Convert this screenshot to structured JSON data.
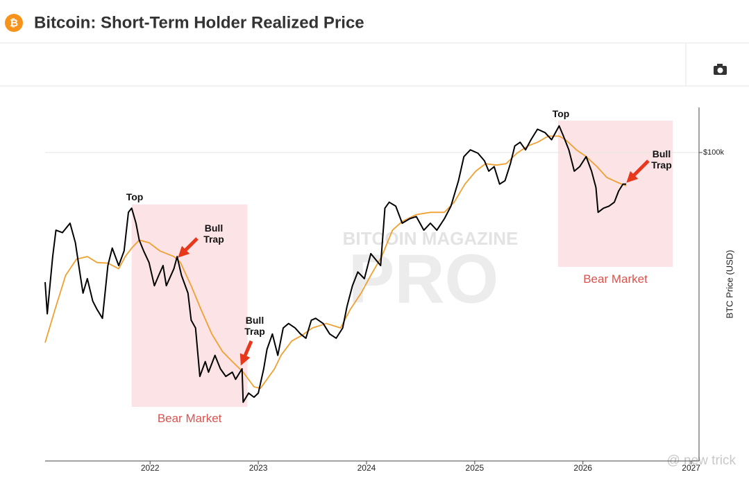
{
  "header": {
    "title": "Bitcoin: Short-Term Holder Realized Price"
  },
  "watermark": {
    "brand": "BITCOIN MAGAZINE",
    "product": "PRO",
    "credit": "@ new trick"
  },
  "chart_data": {
    "type": "line",
    "y_label": "BTC Price (USD)",
    "xlim": [
      2021.03,
      2027.06
    ],
    "xticks": [
      2022,
      2023,
      2024,
      2025,
      2026,
      2027
    ],
    "ylim": [
      10000,
      140000
    ],
    "yticks": [
      {
        "value": 100000,
        "label": "$100k"
      }
    ],
    "y_scale": "log",
    "shade_color": "#fbe3e6",
    "shaded_regions": [
      {
        "label": "Bear Market",
        "x": [
          2021.83,
          2022.9
        ]
      },
      {
        "label": "Bear Market",
        "x": [
          2025.77,
          2026.83
        ]
      }
    ],
    "annotations": [
      "Top",
      "Bull Trap",
      "Bull Trap",
      "Top",
      "Bull Trap"
    ],
    "arrow_color": "#e8381c",
    "series": [
      {
        "color": "#000000",
        "x": [
          2021.03,
          2021.05,
          2021.1,
          2021.13,
          2021.19,
          2021.26,
          2021.31,
          2021.35,
          2021.38,
          2021.42,
          2021.47,
          2021.51,
          2021.56,
          2021.61,
          2021.65,
          2021.71,
          2021.76,
          2021.8,
          2021.83,
          2021.87,
          2021.9,
          2021.94,
          2021.99,
          2022.04,
          2022.08,
          2022.12,
          2022.15,
          2022.22,
          2022.25,
          2022.29,
          2022.35,
          2022.38,
          2022.42,
          2022.46,
          2022.51,
          2022.54,
          2022.6,
          2022.65,
          2022.7,
          2022.76,
          2022.79,
          2022.85,
          2022.86,
          2022.91,
          2022.96,
          2023.0,
          2023.05,
          2023.08,
          2023.13,
          2023.18,
          2023.23,
          2023.28,
          2023.34,
          2023.39,
          2023.44,
          2023.49,
          2023.53,
          2023.6,
          2023.66,
          2023.72,
          2023.78,
          2023.82,
          2023.87,
          2023.92,
          2023.98,
          2024.04,
          2024.13,
          2024.17,
          2024.21,
          2024.27,
          2024.33,
          2024.4,
          2024.46,
          2024.53,
          2024.59,
          2024.65,
          2024.72,
          2024.78,
          2024.85,
          2024.9,
          2024.96,
          2025.03,
          2025.09,
          2025.13,
          2025.18,
          2025.23,
          2025.28,
          2025.33,
          2025.37,
          2025.42,
          2025.47,
          2025.52,
          2025.58,
          2025.65,
          2025.71,
          2025.78,
          2025.82,
          2025.87,
          2025.92,
          2025.97,
          2026.03,
          2026.08,
          2026.12,
          2026.14,
          2026.19,
          2026.24,
          2026.29,
          2026.33,
          2026.37,
          2026.4
        ],
        "values": [
          38000,
          30000,
          46000,
          56000,
          55000,
          59000,
          51000,
          41000,
          35000,
          39000,
          33000,
          31000,
          29000,
          43000,
          49000,
          43000,
          48000,
          64000,
          66000,
          59000,
          52000,
          48000,
          44000,
          37000,
          40000,
          43000,
          37000,
          42000,
          46000,
          40000,
          35000,
          28600,
          27000,
          18800,
          21000,
          19400,
          22000,
          19900,
          18800,
          19400,
          18400,
          19900,
          15500,
          16600,
          16100,
          16600,
          19900,
          23000,
          25800,
          22000,
          27000,
          27900,
          27000,
          25800,
          25000,
          28600,
          29000,
          27900,
          25800,
          25000,
          27000,
          31700,
          37000,
          41000,
          39000,
          47000,
          43000,
          66000,
          69000,
          67000,
          59000,
          61000,
          62000,
          56000,
          59000,
          56000,
          61000,
          67000,
          81000,
          97000,
          102000,
          99500,
          94000,
          87000,
          90000,
          79000,
          81000,
          92000,
          105000,
          108000,
          102000,
          110000,
          119000,
          116000,
          110000,
          122000,
          113000,
          102000,
          87000,
          90000,
          97000,
          87000,
          77000,
          64000,
          66000,
          67000,
          69000,
          75000,
          79000,
          79000
        ]
      },
      {
        "color": "#f0a030",
        "x": [
          2021.03,
          2021.13,
          2021.22,
          2021.32,
          2021.42,
          2021.51,
          2021.61,
          2021.71,
          2021.77,
          2021.83,
          2021.9,
          2021.99,
          2022.09,
          2022.22,
          2022.28,
          2022.38,
          2022.47,
          2022.57,
          2022.67,
          2022.76,
          2022.86,
          2022.96,
          2023.02,
          2023.08,
          2023.15,
          2023.21,
          2023.31,
          2023.4,
          2023.5,
          2023.63,
          2023.76,
          2023.85,
          2023.95,
          2024.04,
          2024.14,
          2024.24,
          2024.33,
          2024.46,
          2024.59,
          2024.72,
          2024.81,
          2024.91,
          2025.01,
          2025.1,
          2025.2,
          2025.29,
          2025.39,
          2025.49,
          2025.58,
          2025.68,
          2025.78,
          2025.84,
          2025.94,
          2026.03,
          2026.13,
          2026.22,
          2026.32,
          2026.4
        ],
        "values": [
          24200,
          31700,
          40000,
          45100,
          46000,
          44000,
          43800,
          42000,
          46000,
          49000,
          52000,
          51000,
          48000,
          46000,
          44000,
          37000,
          31000,
          25800,
          22600,
          21000,
          19400,
          17400,
          17200,
          18400,
          19900,
          22000,
          24500,
          25500,
          27000,
          27900,
          27000,
          31000,
          35000,
          40000,
          46000,
          56000,
          59800,
          62900,
          64000,
          64000,
          69000,
          79000,
          87000,
          92000,
          91000,
          92000,
          99500,
          105000,
          108000,
          113000,
          113000,
          110000,
          102000,
          97000,
          90000,
          83000,
          80000,
          78000
        ]
      }
    ]
  }
}
